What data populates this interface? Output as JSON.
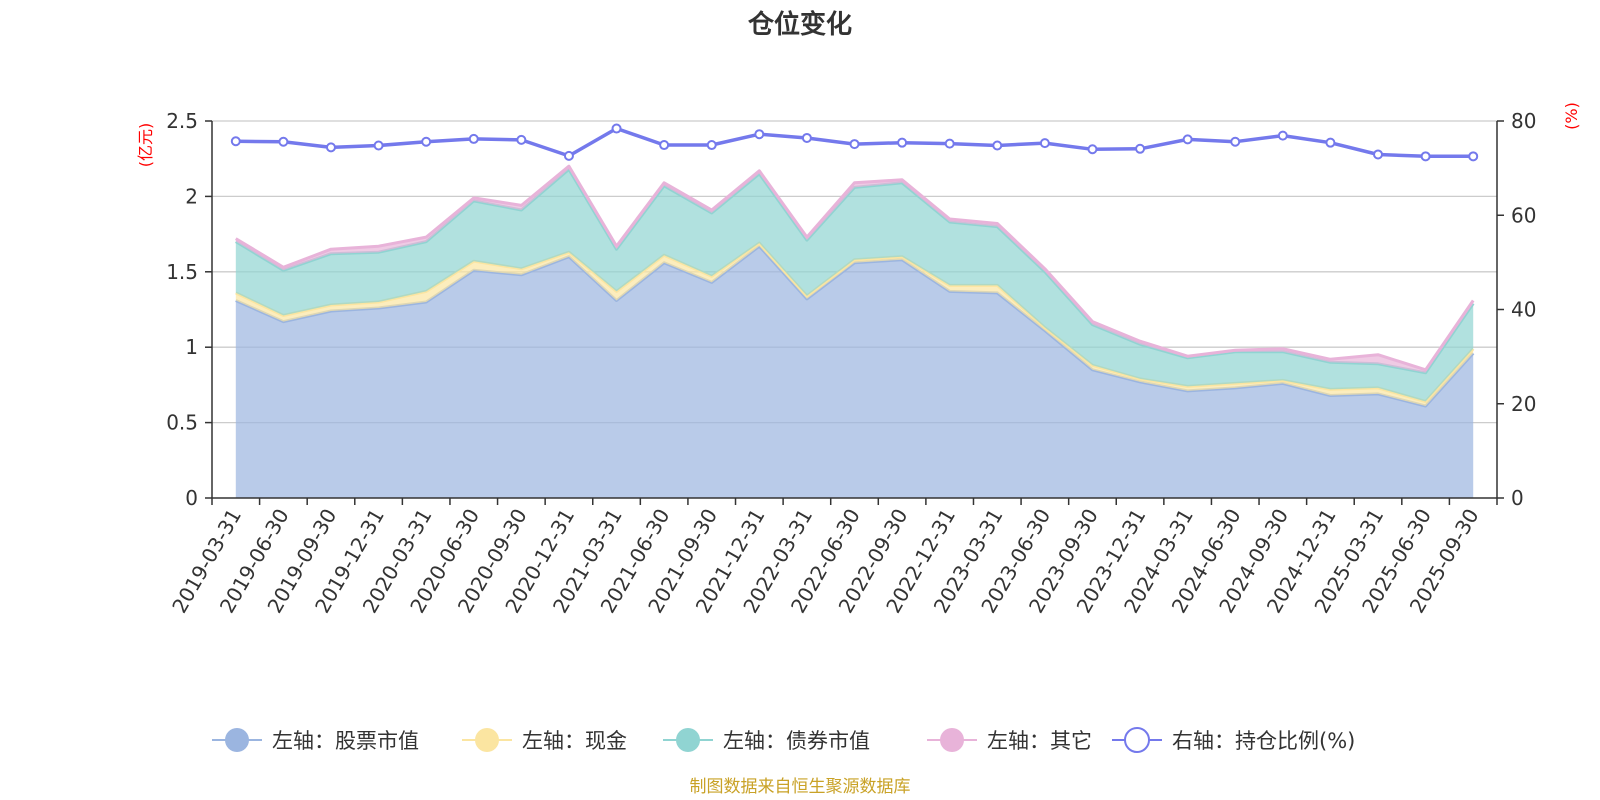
{
  "chart_data": {
    "type": "area",
    "title": "仓位变化",
    "left_axis_unit": "(亿元)",
    "right_axis_unit": "(%)",
    "left_ylim": [
      0,
      2.5
    ],
    "right_ylim": [
      0,
      80
    ],
    "left_ticks": [
      0,
      0.5,
      1,
      1.5,
      2,
      2.5
    ],
    "left_tick_labels": [
      "0",
      "0.5",
      "1",
      "1.5",
      "2",
      "2.5"
    ],
    "right_ticks": [
      0,
      20,
      40,
      60,
      80
    ],
    "right_tick_labels": [
      "0",
      "20",
      "40",
      "60",
      "80"
    ],
    "grid": true,
    "legend_position": "bottom",
    "categories": [
      "2019-03-31",
      "2019-06-30",
      "2019-09-30",
      "2019-12-31",
      "2020-03-31",
      "2020-06-30",
      "2020-09-30",
      "2020-12-31",
      "2021-03-31",
      "2021-06-30",
      "2021-09-30",
      "2021-12-31",
      "2022-03-31",
      "2022-06-30",
      "2022-09-30",
      "2022-12-31",
      "2023-03-31",
      "2023-06-30",
      "2023-09-30",
      "2023-12-31",
      "2024-03-31",
      "2024-06-30",
      "2024-09-30",
      "2024-12-31",
      "2025-03-31",
      "2025-06-30",
      "2025-09-30"
    ],
    "series": [
      {
        "name": "左轴：股票市值",
        "axis": "left",
        "stacked": true,
        "color": "#9bb5e0",
        "values": [
          1.31,
          1.17,
          1.24,
          1.26,
          1.3,
          1.51,
          1.48,
          1.6,
          1.31,
          1.56,
          1.43,
          1.67,
          1.32,
          1.56,
          1.58,
          1.37,
          1.36,
          1.11,
          0.85,
          0.77,
          0.71,
          0.73,
          0.76,
          0.68,
          0.69,
          0.61,
          0.96
        ]
      },
      {
        "name": "左轴：现金",
        "axis": "left",
        "stacked": true,
        "color": "#fbe5a1",
        "values": [
          0.05,
          0.04,
          0.04,
          0.04,
          0.07,
          0.06,
          0.04,
          0.03,
          0.06,
          0.05,
          0.04,
          0.02,
          0.02,
          0.02,
          0.02,
          0.04,
          0.05,
          0.02,
          0.03,
          0.02,
          0.03,
          0.03,
          0.02,
          0.04,
          0.04,
          0.03,
          0.03
        ]
      },
      {
        "name": "左轴：债券市值",
        "axis": "left",
        "stacked": true,
        "color": "#90d4d2",
        "values": [
          0.34,
          0.3,
          0.34,
          0.33,
          0.33,
          0.4,
          0.39,
          0.55,
          0.28,
          0.46,
          0.42,
          0.46,
          0.37,
          0.48,
          0.49,
          0.42,
          0.39,
          0.37,
          0.27,
          0.23,
          0.19,
          0.21,
          0.19,
          0.18,
          0.16,
          0.19,
          0.3
        ]
      },
      {
        "name": "左轴：其它",
        "axis": "left",
        "stacked": true,
        "color": "#e8b3d9",
        "values": [
          0.02,
          0.02,
          0.03,
          0.04,
          0.03,
          0.02,
          0.03,
          0.02,
          0.02,
          0.02,
          0.02,
          0.02,
          0.02,
          0.03,
          0.02,
          0.02,
          0.02,
          0.02,
          0.02,
          0.02,
          0.01,
          0.01,
          0.02,
          0.02,
          0.06,
          0.02,
          0.02
        ]
      },
      {
        "name": "右轴：持仓比例(%)",
        "axis": "right",
        "stacked": false,
        "color": "#7479ec",
        "values": [
          75.7,
          75.6,
          74.4,
          74.8,
          75.6,
          76.2,
          76.0,
          72.6,
          78.4,
          74.9,
          74.9,
          77.2,
          76.4,
          75.1,
          75.4,
          75.2,
          74.8,
          75.3,
          74.0,
          74.1,
          76.1,
          75.6,
          76.9,
          75.4,
          72.9,
          72.5,
          72.5
        ]
      }
    ],
    "source_note": "制图数据来自恒生聚源数据库"
  }
}
